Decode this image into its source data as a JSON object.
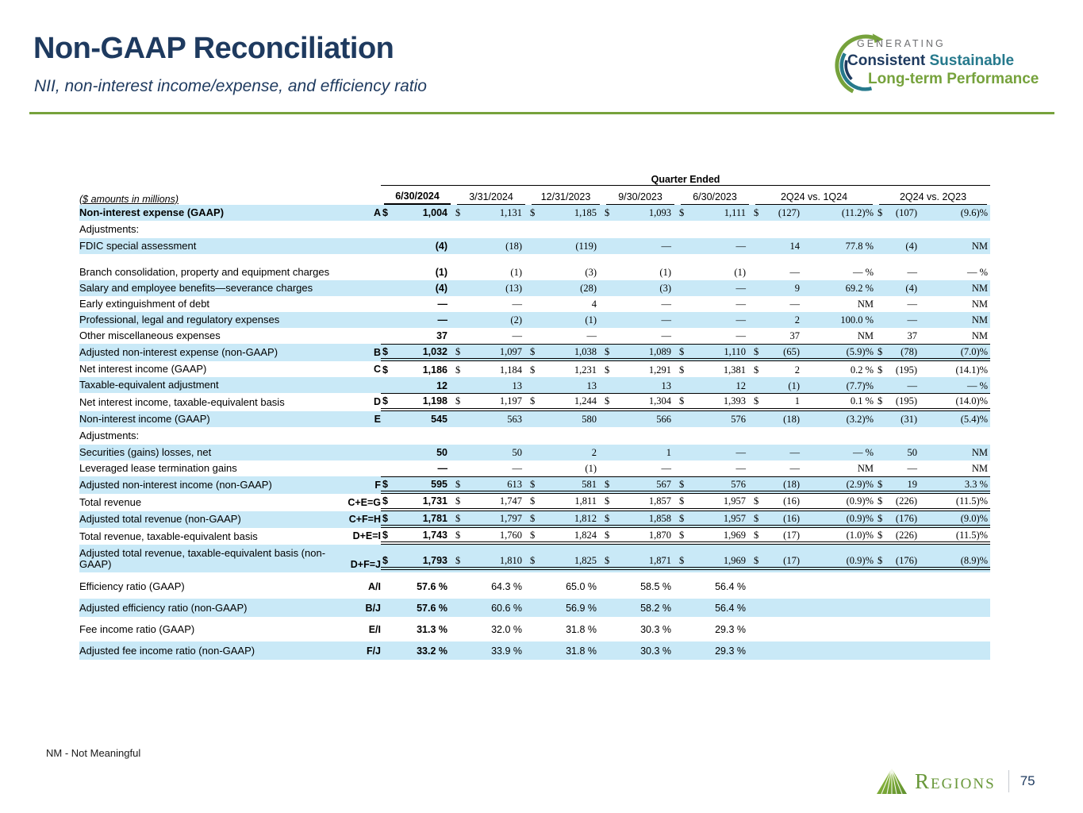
{
  "header": {
    "title": "Non-GAAP Reconciliation",
    "subtitle": "NII, non-interest income/expense, and efficiency ratio",
    "logo": {
      "line1": "GENERATING",
      "line2_part1": "Consistent",
      "line2_part2": "Sustainable",
      "line3": "Long-term Performance"
    }
  },
  "table": {
    "units_label": "($ amounts in millions)",
    "quarter_ended_label": "Quarter Ended",
    "columns": [
      "6/30/2024",
      "3/31/2024",
      "12/31/2023",
      "9/30/2023",
      "6/30/2023"
    ],
    "comparison_columns": [
      "2Q24 vs. 1Q24",
      "2Q24 vs. 2Q23"
    ],
    "rows": [
      {
        "type": "data",
        "label": "Non-interest expense (GAAP)",
        "ref": "A",
        "bold_label": true,
        "dollar": true,
        "shade": true,
        "cells": [
          "1,004",
          "1,131",
          "1,185",
          "1,093",
          "1,111"
        ],
        "chg": [
          "(127)",
          "(11.2)%",
          "(107)",
          "(9.6)%"
        ],
        "chg_dollar": [
          true,
          true
        ]
      },
      {
        "type": "section",
        "label": "Adjustments:"
      },
      {
        "type": "data",
        "label": "FDIC special assessment",
        "shade": true,
        "cells": [
          "(4)",
          "(18)",
          "(119)",
          "—",
          "—"
        ],
        "chg": [
          "14",
          "77.8 %",
          "(4)",
          "NM"
        ],
        "chg_dollar": [
          false,
          false
        ]
      },
      {
        "type": "spacer",
        "h": 13
      },
      {
        "type": "data",
        "label": "Branch consolidation, property and equipment charges",
        "shade": false,
        "cells": [
          "(1)",
          "(1)",
          "(3)",
          "(1)",
          "(1)"
        ],
        "chg": [
          "—",
          "— %",
          "—",
          "— %"
        ],
        "chg_dollar": [
          false,
          false
        ]
      },
      {
        "type": "data",
        "label": "Salary and employee benefits—severance charges",
        "shade": true,
        "cells": [
          "(4)",
          "(13)",
          "(28)",
          "(3)",
          "—"
        ],
        "chg": [
          "9",
          "69.2 %",
          "(4)",
          "NM"
        ],
        "chg_dollar": [
          false,
          false
        ]
      },
      {
        "type": "data",
        "label": "Early extinguishment of debt",
        "shade": false,
        "cells": [
          "—",
          "—",
          "4",
          "—",
          "—"
        ],
        "chg": [
          "—",
          "NM",
          "—",
          "NM"
        ],
        "chg_dollar": [
          false,
          false
        ]
      },
      {
        "type": "data",
        "label": "Professional, legal and regulatory expenses",
        "shade": true,
        "cells": [
          "—",
          "(2)",
          "(1)",
          "—",
          "—"
        ],
        "chg": [
          "2",
          "100.0 %",
          "—",
          "NM"
        ],
        "chg_dollar": [
          false,
          false
        ]
      },
      {
        "type": "data",
        "label": "Other miscellaneous expenses",
        "shade": false,
        "cells": [
          "37",
          "—",
          "—",
          "—",
          "—"
        ],
        "chg": [
          "37",
          "NM",
          "37",
          "NM"
        ],
        "chg_dollar": [
          false,
          false
        ]
      },
      {
        "type": "data",
        "label": "Adjusted non-interest expense (non-GAAP)",
        "ref": "B",
        "dollar": true,
        "shade": true,
        "cells": [
          "1,032",
          "1,097",
          "1,038",
          "1,089",
          "1,110"
        ],
        "chg": [
          "(65)",
          "(5.9)%",
          "(78)",
          "(7.0)%"
        ],
        "chg_dollar": [
          true,
          true
        ],
        "rule_top": true,
        "rule_bottom": "double"
      },
      {
        "type": "data",
        "label": "Net interest income (GAAP)",
        "ref": "C",
        "dollar": true,
        "shade": false,
        "cells": [
          "1,186",
          "1,184",
          "1,231",
          "1,291",
          "1,381"
        ],
        "chg": [
          "2",
          "0.2 %",
          "(195)",
          "(14.1)%"
        ],
        "chg_dollar": [
          true,
          true
        ]
      },
      {
        "type": "data",
        "label": "Taxable-equivalent adjustment",
        "shade": true,
        "cells": [
          "12",
          "13",
          "13",
          "13",
          "12"
        ],
        "chg": [
          "(1)",
          "(7.7)%",
          "—",
          "— %"
        ],
        "chg_dollar": [
          false,
          false
        ]
      },
      {
        "type": "data",
        "label": "Net interest income, taxable-equivalent basis",
        "ref": "D",
        "dollar": true,
        "shade": false,
        "cells": [
          "1,198",
          "1,197",
          "1,244",
          "1,304",
          "1,393"
        ],
        "chg": [
          "1",
          "0.1 %",
          "(195)",
          "(14.0)%"
        ],
        "chg_dollar": [
          true,
          true
        ],
        "rule_top": true,
        "rule_bottom": "double"
      },
      {
        "type": "data",
        "label": "Non-interest income (GAAP)",
        "ref": "E",
        "shade": true,
        "cells": [
          "545",
          "563",
          "580",
          "566",
          "576"
        ],
        "chg": [
          "(18)",
          "(3.2)%",
          "(31)",
          "(5.4)%"
        ],
        "chg_dollar": [
          false,
          false
        ]
      },
      {
        "type": "section",
        "label": "Adjustments:"
      },
      {
        "type": "data",
        "label": "Securities (gains) losses, net",
        "shade": true,
        "cells": [
          "50",
          "50",
          "2",
          "1",
          "—"
        ],
        "chg": [
          "—",
          "— %",
          "50",
          "NM"
        ],
        "chg_dollar": [
          false,
          false
        ]
      },
      {
        "type": "data",
        "label": "Leveraged lease termination gains",
        "shade": false,
        "cells": [
          "—",
          "—",
          "(1)",
          "—",
          "—"
        ],
        "chg": [
          "—",
          "NM",
          "—",
          "NM"
        ],
        "chg_dollar": [
          false,
          false
        ]
      },
      {
        "type": "data",
        "label": "Adjusted non-interest income (non-GAAP)",
        "ref": "F",
        "dollar": true,
        "shade": true,
        "cells": [
          "595",
          "613",
          "581",
          "567",
          "576"
        ],
        "chg": [
          "(18)",
          "(2.9)%",
          "19",
          "3.3 %"
        ],
        "chg_dollar": [
          false,
          true
        ],
        "rule_top": true,
        "rule_bottom": "double"
      },
      {
        "type": "data",
        "label": "Total revenue",
        "ref": "C+E=G",
        "dollar": true,
        "shade": false,
        "cells": [
          "1,731",
          "1,747",
          "1,811",
          "1,857",
          "1,957"
        ],
        "chg": [
          "(16)",
          "(0.9)%",
          "(226)",
          "(11.5)%"
        ],
        "chg_dollar": [
          true,
          true
        ],
        "rule_bottom": "double"
      },
      {
        "type": "data",
        "label": "Adjusted total revenue (non-GAAP)",
        "ref": "C+F=H",
        "dollar": true,
        "shade": true,
        "cells": [
          "1,781",
          "1,797",
          "1,812",
          "1,858",
          "1,957"
        ],
        "chg": [
          "(16)",
          "(0.9)%",
          "(176)",
          "(9.0)%"
        ],
        "chg_dollar": [
          true,
          true
        ],
        "rule_bottom": "double"
      },
      {
        "type": "data",
        "label": "Total revenue, taxable-equivalent basis",
        "ref": "D+E=I",
        "dollar": true,
        "shade": false,
        "cells": [
          "1,743",
          "1,760",
          "1,824",
          "1,870",
          "1,969"
        ],
        "chg": [
          "(17)",
          "(1.0)%",
          "(226)",
          "(11.5)%"
        ],
        "chg_dollar": [
          true,
          true
        ],
        "rule_bottom": "double"
      },
      {
        "type": "data",
        "label": "Adjusted total revenue, taxable-equivalent basis (non-GAAP)",
        "ref": "D+F=J",
        "dollar": true,
        "shade": true,
        "tall": true,
        "cells": [
          "1,793",
          "1,810",
          "1,825",
          "1,871",
          "1,969"
        ],
        "chg": [
          "(17)",
          "(0.9)%",
          "(176)",
          "(8.9)%"
        ],
        "chg_dollar": [
          true,
          true
        ],
        "rule_bottom": "double"
      },
      {
        "type": "spacer",
        "h": 6
      },
      {
        "type": "data",
        "label": "Efficiency ratio (GAAP)",
        "ref": "A/I",
        "ratio": true,
        "shade": false,
        "cells": [
          "57.6 %",
          "64.3 %",
          "65.0 %",
          "58.5 %",
          "56.4 %"
        ],
        "chg": [
          "",
          "",
          "",
          ""
        ],
        "chg_dollar": [
          false,
          false
        ]
      },
      {
        "type": "spacer",
        "h": 4
      },
      {
        "type": "data",
        "label": "Adjusted efficiency ratio (non-GAAP)",
        "ref": "B/J",
        "ratio": true,
        "shade": true,
        "cells": [
          "57.6 %",
          "60.6 %",
          "56.9 %",
          "58.2 %",
          "56.4 %"
        ],
        "chg": [
          "",
          "",
          "",
          ""
        ],
        "chg_dollar": [
          false,
          false
        ]
      },
      {
        "type": "spacer",
        "h": 4
      },
      {
        "type": "data",
        "label": "Fee income ratio (GAAP)",
        "ref": "E/I",
        "ratio": true,
        "shade": false,
        "cells": [
          "31.3 %",
          "32.0 %",
          "31.8 %",
          "30.3 %",
          "29.3 %"
        ],
        "chg": [
          "",
          "",
          "",
          ""
        ],
        "chg_dollar": [
          false,
          false
        ]
      },
      {
        "type": "spacer",
        "h": 4
      },
      {
        "type": "data",
        "label": "Adjusted fee income ratio (non-GAAP)",
        "ref": "F/J",
        "ratio": true,
        "shade": true,
        "cells": [
          "33.2 %",
          "33.9 %",
          "31.8 %",
          "30.3 %",
          "29.3 %"
        ],
        "chg": [
          "",
          "",
          "",
          ""
        ],
        "chg_dollar": [
          false,
          false
        ]
      }
    ]
  },
  "footnote": "NM - Not Meaningful",
  "footer": {
    "brand": "Regions",
    "page": "75"
  },
  "colors": {
    "navy": "#1E3A5F",
    "green": "#76A23C",
    "teal": "#26798C",
    "stripe": "#C9E9F7",
    "gray": "#6D6E71",
    "logo_green": "#69983A",
    "separator_gray": "#C5C9CF"
  }
}
